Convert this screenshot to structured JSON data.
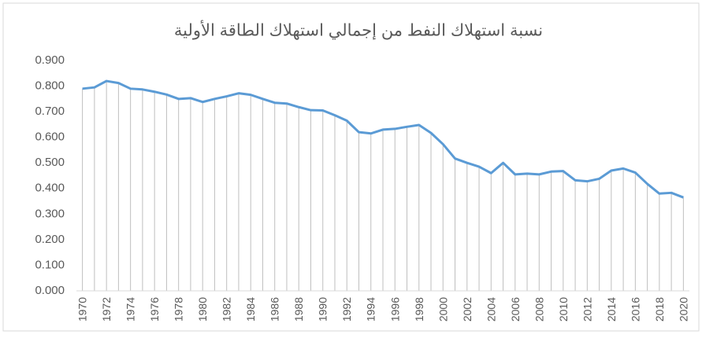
{
  "chart_data": {
    "type": "line",
    "title": "نسبة استهلاك النفط من إجمالي استهلاك الطاقة الأولية",
    "categories": [
      "1970",
      null,
      "1972",
      null,
      "1974",
      null,
      "1976",
      null,
      "1978",
      null,
      "1980",
      null,
      "1982",
      null,
      "1984",
      null,
      "1986",
      null,
      "1988",
      null,
      "1990",
      null,
      "1992",
      null,
      "1994",
      null,
      "1996",
      null,
      "1998",
      null,
      "2000",
      null,
      "2002",
      null,
      "2004",
      null,
      "2006",
      null,
      "2008",
      null,
      "2010",
      null,
      "2012",
      null,
      "2014",
      null,
      "2016",
      null,
      "2018",
      null,
      "2020"
    ],
    "values": [
      0.79,
      0.795,
      0.82,
      0.812,
      0.79,
      0.787,
      0.778,
      0.767,
      0.75,
      0.753,
      0.738,
      0.75,
      0.76,
      0.772,
      0.766,
      0.75,
      0.735,
      0.732,
      0.718,
      0.706,
      0.705,
      0.686,
      0.665,
      0.62,
      0.615,
      0.63,
      0.633,
      0.641,
      0.648,
      0.617,
      0.573,
      0.517,
      0.5,
      0.485,
      0.46,
      0.5,
      0.455,
      0.458,
      0.455,
      0.466,
      0.468,
      0.432,
      0.428,
      0.438,
      0.47,
      0.478,
      0.462,
      0.418,
      0.38,
      0.383,
      0.365
    ],
    "color": "#5b9bd5",
    "ylim": [
      0,
      0.9
    ],
    "yticks": [
      {
        "value": 0,
        "label": "0.000"
      },
      {
        "value": 0.1,
        "label": "0.100"
      },
      {
        "value": 0.2,
        "label": "0.200"
      },
      {
        "value": 0.3,
        "label": "0.300"
      },
      {
        "value": 0.4,
        "label": "0.400"
      },
      {
        "value": 0.5,
        "label": "0.500"
      },
      {
        "value": 0.6,
        "label": "0.600"
      },
      {
        "value": 0.7,
        "label": "0.700"
      },
      {
        "value": 0.8,
        "label": "0.800"
      },
      {
        "value": 0.9,
        "label": "0.900"
      }
    ],
    "drop_lines": true
  }
}
